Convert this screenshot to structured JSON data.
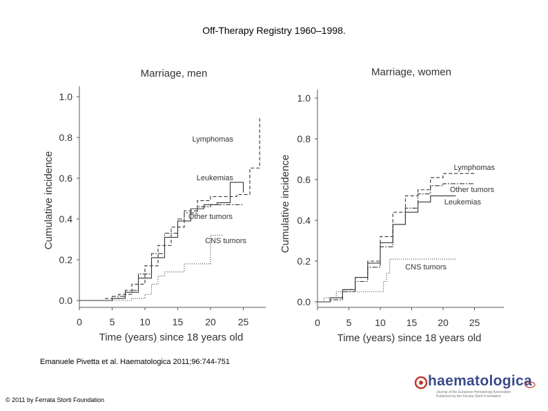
{
  "slide": {
    "title": "Off-Therapy Registry 1960–1998.",
    "citation": "Emanuele Pivetta et al. Haematologica 2011;96:744-751",
    "copyright": "© 2011 by Ferrata Storti Foundation"
  },
  "logo": {
    "name": "haematologica",
    "subtitle1": "Journal of the European Hematology Association",
    "subtitle2": "Published by the Ferrata Storti Foundation",
    "color": "#3a4a8a",
    "accent": "#c0392b"
  },
  "chart_data": [
    {
      "type": "line",
      "subtype": "step",
      "title": "Marriage, men",
      "xlabel": "Time (years) since 18 years old",
      "ylabel": "Cumulative incidence",
      "xlim": [
        0,
        28
      ],
      "ylim": [
        0,
        1.0
      ],
      "xticks": [
        0,
        5,
        10,
        15,
        20,
        25
      ],
      "yticks": [
        0.0,
        0.2,
        0.4,
        0.6,
        0.8,
        1.0
      ],
      "ytick_labels": [
        "0.0",
        "0.2",
        "0.4",
        "0.6",
        "0.8",
        "1.0"
      ],
      "series": [
        {
          "name": "Lymphomas",
          "dash": "5,3",
          "x": [
            0,
            2,
            4,
            6,
            8,
            10,
            12,
            14,
            16,
            18,
            20,
            24,
            25,
            26,
            27,
            27.5
          ],
          "y": [
            0,
            0,
            0.01,
            0.03,
            0.08,
            0.17,
            0.27,
            0.36,
            0.44,
            0.49,
            0.51,
            0.52,
            0.52,
            0.65,
            0.65,
            0.9
          ]
        },
        {
          "name": "Leukemias",
          "dash": "",
          "x": [
            0,
            3,
            5,
            7,
            9,
            11,
            13,
            15,
            17,
            19,
            21,
            23,
            24,
            25
          ],
          "y": [
            0,
            0,
            0.01,
            0.04,
            0.11,
            0.21,
            0.31,
            0.39,
            0.45,
            0.47,
            0.48,
            0.58,
            0.58,
            0.53
          ]
        },
        {
          "name": "Other tumors",
          "dash": "7,2,2,2",
          "x": [
            0,
            3,
            5,
            7,
            9,
            11,
            13,
            15,
            16,
            18,
            20,
            22,
            25
          ],
          "y": [
            0,
            0,
            0.02,
            0.05,
            0.13,
            0.23,
            0.33,
            0.4,
            0.43,
            0.46,
            0.47,
            0.47,
            0.47
          ]
        },
        {
          "name": "CNS tumors",
          "dash": "1,2",
          "x": [
            0,
            5,
            8,
            10,
            11,
            12,
            13,
            15,
            16,
            17,
            19,
            20,
            21,
            22
          ],
          "y": [
            0,
            0,
            0.01,
            0.03,
            0.08,
            0.12,
            0.14,
            0.14,
            0.18,
            0.18,
            0.18,
            0.32,
            0.32,
            0.32
          ]
        }
      ]
    },
    {
      "type": "line",
      "subtype": "step",
      "title": "Marriage, women",
      "xlabel": "Time (years) since 18 years old",
      "ylabel": "Cumulative incidence",
      "xlim": [
        0,
        28
      ],
      "ylim": [
        0,
        1.0
      ],
      "xticks": [
        0,
        5,
        10,
        15,
        20,
        25
      ],
      "yticks": [
        0.0,
        0.2,
        0.4,
        0.6,
        0.8,
        1.0
      ],
      "ytick_labels": [
        "0.0",
        "0.2",
        "0.4",
        "0.6",
        "0.8",
        "1.0"
      ],
      "series": [
        {
          "name": "Lymphomas",
          "dash": "5,3",
          "x": [
            0,
            2,
            4,
            6,
            8,
            10,
            12,
            14,
            16,
            18,
            20,
            22,
            25
          ],
          "y": [
            0,
            0.02,
            0.06,
            0.12,
            0.2,
            0.32,
            0.44,
            0.52,
            0.55,
            0.61,
            0.63,
            0.63,
            0.63
          ]
        },
        {
          "name": "Other tumors",
          "dash": "7,2,2,2",
          "x": [
            0,
            2,
            4,
            6,
            8,
            10,
            12,
            14,
            16,
            18,
            20,
            22,
            25
          ],
          "y": [
            0,
            0.01,
            0.05,
            0.1,
            0.17,
            0.27,
            0.38,
            0.46,
            0.53,
            0.57,
            0.58,
            0.58,
            0.58
          ]
        },
        {
          "name": "Leukemias",
          "dash": "",
          "x": [
            0,
            2,
            4,
            6,
            8,
            10,
            12,
            14,
            16,
            18,
            20,
            22
          ],
          "y": [
            0,
            0.02,
            0.06,
            0.12,
            0.19,
            0.29,
            0.38,
            0.44,
            0.49,
            0.52,
            0.52,
            0.52
          ]
        },
        {
          "name": "CNS tumors",
          "dash": "1,2",
          "x": [
            0,
            1,
            3,
            5,
            7,
            9,
            10.5,
            11,
            11.5,
            13,
            16,
            19,
            22
          ],
          "y": [
            0,
            0.02,
            0.05,
            0.05,
            0.05,
            0.05,
            0.1,
            0.14,
            0.21,
            0.21,
            0.21,
            0.21,
            0.21
          ]
        }
      ],
      "labels": [
        "Lymphomas",
        "Other tumors",
        "Leukemias",
        "CNS tumors"
      ]
    }
  ]
}
